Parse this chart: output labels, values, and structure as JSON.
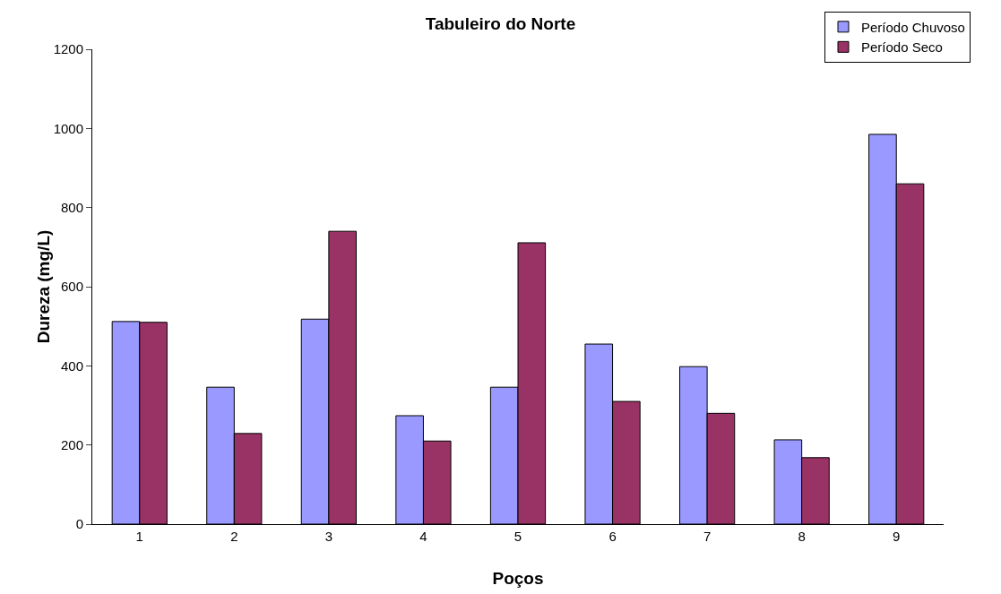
{
  "chart_data": {
    "type": "bar",
    "title": "Tabuleiro do Norte",
    "xlabel": "Poços",
    "ylabel": "Dureza (mg/L)",
    "categories": [
      "1",
      "2",
      "3",
      "4",
      "5",
      "6",
      "7",
      "8",
      "9"
    ],
    "series": [
      {
        "name": "Período Chuvoso",
        "color": "#9999ff",
        "values": [
          512,
          346,
          518,
          274,
          346,
          455,
          398,
          213,
          985
        ]
      },
      {
        "name": "Período Seco",
        "color": "#993366",
        "values": [
          510,
          229,
          740,
          210,
          711,
          310,
          280,
          168,
          860
        ]
      }
    ],
    "ylim": [
      0,
      1200
    ],
    "yticks": [
      0,
      200,
      400,
      600,
      800,
      1000,
      1200
    ],
    "grid": false,
    "legend": "top right"
  }
}
